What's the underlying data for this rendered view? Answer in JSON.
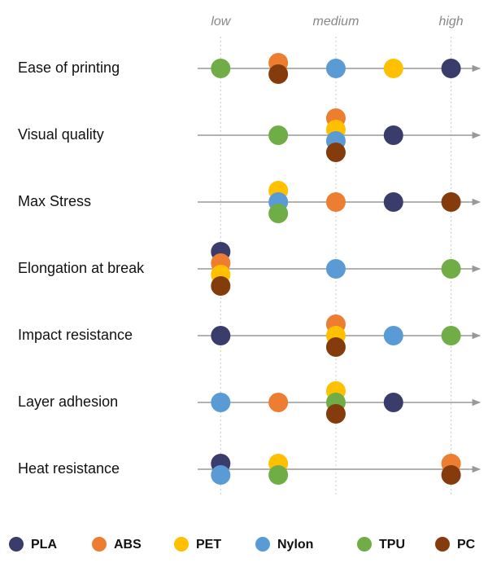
{
  "chart_data": {
    "type": "dot",
    "categories": [
      "Ease of printing",
      "Visual quality",
      "Max Stress",
      "Elongation at break",
      "Impact resistance",
      "Layer adhesion",
      "Heat resistance"
    ],
    "series": [
      {
        "name": "PLA",
        "color": "#3a3d6b",
        "values": [
          5,
          4,
          4,
          1,
          1,
          4,
          1
        ]
      },
      {
        "name": "ABS",
        "color": "#ed7d31",
        "values": [
          2,
          3,
          3,
          1,
          3,
          2,
          5
        ]
      },
      {
        "name": "PET",
        "color": "#ffc000",
        "values": [
          4,
          3,
          2,
          1,
          3,
          3,
          2
        ]
      },
      {
        "name": "Nylon",
        "color": "#5b9bd5",
        "values": [
          3,
          3,
          2,
          3,
          4,
          1,
          1
        ]
      },
      {
        "name": "TPU",
        "color": "#70ad47",
        "values": [
          1,
          2,
          2,
          5,
          5,
          3,
          2
        ]
      },
      {
        "name": "PC",
        "color": "#843c0c",
        "values": [
          2,
          3,
          5,
          1,
          3,
          3,
          5
        ]
      }
    ],
    "xlim": [
      0.6,
      5.5
    ],
    "xticks": [
      {
        "value": 1,
        "label": "low"
      },
      {
        "value": 3,
        "label": "medium"
      },
      {
        "value": 5,
        "label": "high"
      }
    ],
    "grid": true
  }
}
